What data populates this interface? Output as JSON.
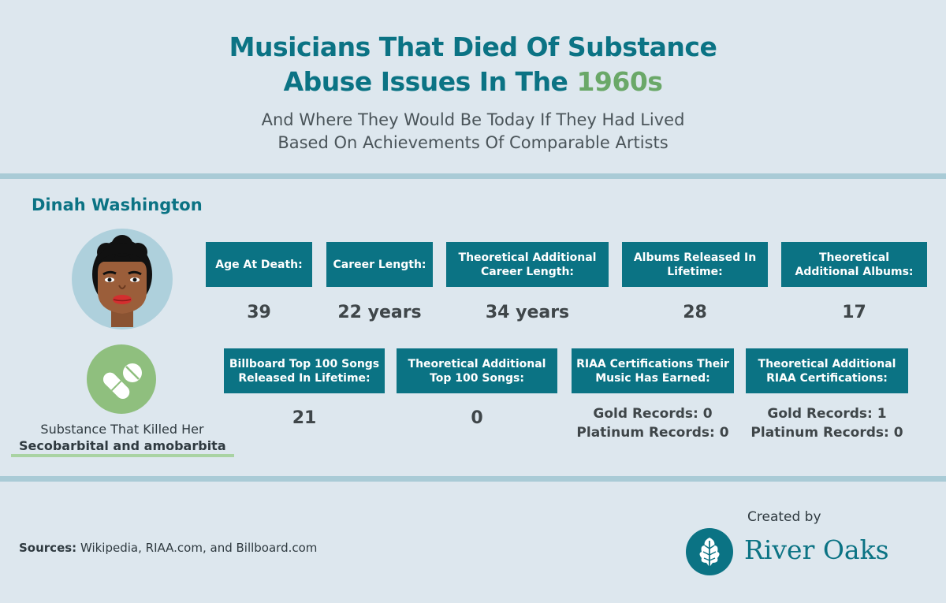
{
  "header": {
    "title_line1": "Musicians That Died Of Substance",
    "title_line2": "Abuse Issues In The ",
    "title_accent": "1960s",
    "subtitle_line1": "And Where They Would Be Today If They Had Lived",
    "subtitle_line2": "Based On Achievements Of Comparable Artists"
  },
  "artist": {
    "name": "Dinah Washington",
    "substance_label": "Substance That Killed Her",
    "substance_value": "Secobarbital and amobarbita"
  },
  "stats_row1": [
    {
      "label": "Age At Death:",
      "value": "39"
    },
    {
      "label": "Career Length:",
      "value": "22 years"
    },
    {
      "label": "Theoretical Additional Career Length:",
      "value": "34 years"
    },
    {
      "label": "Albums Released In Lifetime:",
      "value": "28"
    },
    {
      "label": "Theoretical Additional Albums:",
      "value": "17"
    }
  ],
  "stats_row2": [
    {
      "label": "Billboard Top 100 Songs Released In Lifetime:",
      "value": "21"
    },
    {
      "label": "Theoretical Additional Top 100 Songs:",
      "value": "0"
    },
    {
      "label": "RIAA Certifications Their Music Has Earned:",
      "value_line1": "Gold Records: 0",
      "value_line2": "Platinum Records: 0"
    },
    {
      "label": "Theoretical Additional RIAA Certifications:",
      "value_line1": "Gold Records: 1",
      "value_line2": "Platinum Records: 0"
    }
  ],
  "footer": {
    "sources_label": "Sources:",
    "sources_text": " Wikipedia, RIAA.com, and Billboard.com",
    "created_by": "Created by",
    "logo_text": "River Oaks"
  },
  "icons": {
    "avatar": "woman-portrait-icon",
    "pill": "pills-icon",
    "logo": "oak-leaf-icon"
  },
  "colors": {
    "background": "#dde7ee",
    "brand_teal": "#0b7384",
    "accent_green": "#6aa868",
    "divider": "#a9cbd6"
  }
}
